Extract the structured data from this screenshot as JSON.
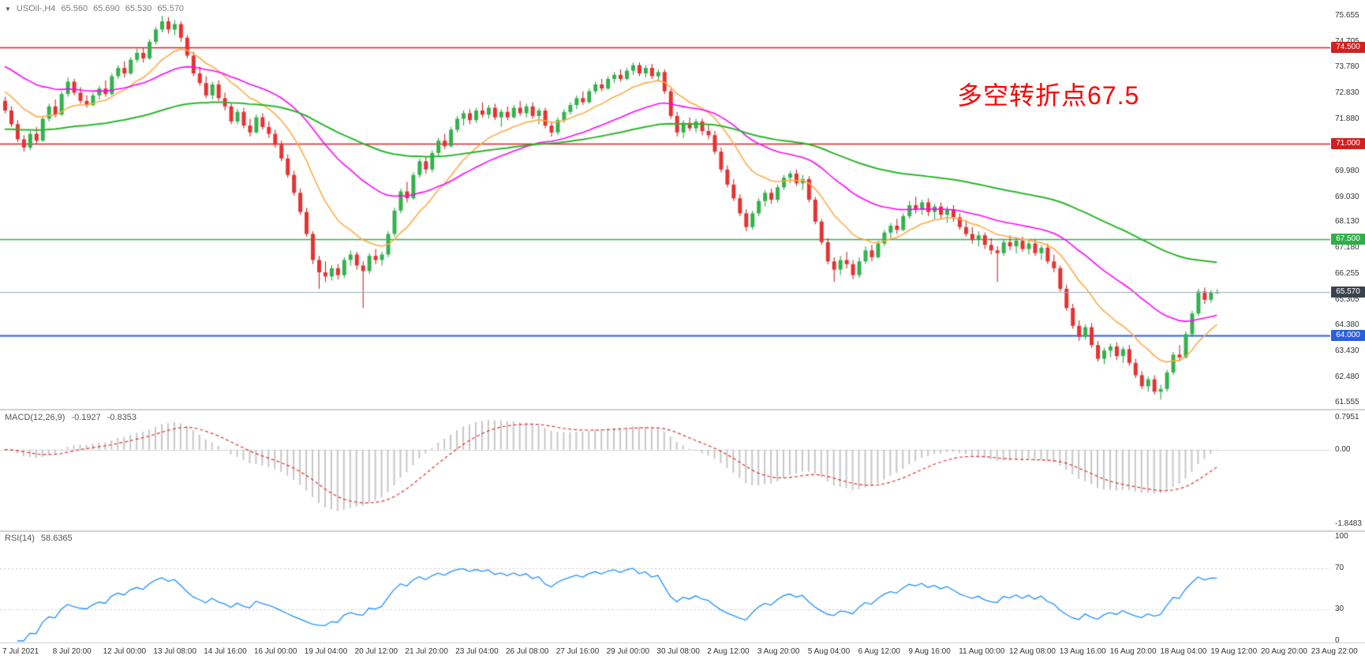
{
  "chart_header": {
    "symbol_period": "USOil-,H4",
    "open": "65.560",
    "high": "65.690",
    "low": "65.530",
    "close": "65.570"
  },
  "annotation": {
    "text": "多空转折点67.5",
    "color": "#ff0000"
  },
  "macd_panel": {
    "title": "MACD(12,26,9)",
    "main_value": "-0.1927",
    "signal_value": "-0.8353",
    "axis_labels": [
      {
        "text": "0.7951",
        "value": 0.7951
      },
      {
        "text": "0.00",
        "value": 0
      },
      {
        "text": "-1.8483",
        "value": -1.8483
      }
    ]
  },
  "rsi_panel": {
    "title": "RSI(14)",
    "value": "58.6365",
    "axis_labels": [
      {
        "text": "100",
        "value": 100
      },
      {
        "text": "70",
        "value": 70
      },
      {
        "text": "30",
        "value": 30
      },
      {
        "text": "0",
        "value": 0
      }
    ]
  },
  "price_axis": {
    "gridline_labels": [
      "75.655",
      "74.705",
      "73.780",
      "72.830",
      "71.880",
      "70.930",
      "69.980",
      "69.030",
      "68.130",
      "67.180",
      "66.255",
      "65.305",
      "64.380",
      "63.430",
      "62.480",
      "61.555"
    ]
  },
  "time_axis": {
    "labels": [
      "7 Jul 2021",
      "8 Jul 20:00",
      "12 Jul 00:00",
      "13 Jul 08:00",
      "14 Jul 16:00",
      "16 Jul 00:00",
      "19 Jul 04:00",
      "20 Jul 12:00",
      "21 Jul 20:00",
      "23 Jul 04:00",
      "26 Jul 08:00",
      "27 Jul 16:00",
      "29 Jul 00:00",
      "30 Jul 08:00",
      "2 Aug 12:00",
      "3 Aug 20:00",
      "5 Aug 04:00",
      "6 Aug 12:00",
      "9 Aug 16:00",
      "11 Aug 00:00",
      "12 Aug 08:00",
      "13 Aug 16:00",
      "16 Aug 20:00",
      "18 Aug 04:00",
      "19 Aug 12:00",
      "20 Aug 20:00",
      "23 Aug 22:00"
    ]
  },
  "chart_data": {
    "type": "candlestick",
    "symbol": "USOil-",
    "timeframe": "H4",
    "current_bar": {
      "open": 65.56,
      "high": 65.69,
      "low": 65.53,
      "close": 65.57
    },
    "price_range": {
      "min": 61.44,
      "max": 75.94
    },
    "horizontal_lines": [
      {
        "value": 74.5,
        "label": "74.500",
        "color": "#d02020",
        "width": 1.5
      },
      {
        "value": 71.0,
        "label": "71.000",
        "color": "#d02020",
        "width": 1.5
      },
      {
        "value": 67.5,
        "label": "67.500",
        "color": "#2fae4a",
        "width": 1.5
      },
      {
        "value": 64.0,
        "label": "64.000",
        "color": "#2b5fd9",
        "width": 2
      }
    ],
    "current_price_line": {
      "value": 65.57,
      "label": "65.570",
      "color": "#9aacb8",
      "box_color": "#3a434c"
    },
    "moving_averages": [
      {
        "name": "fast-ma",
        "period": 13,
        "color": "#ffaa44",
        "seed": 73.0
      },
      {
        "name": "mid-ma",
        "period": 34,
        "color": "#ff00ff",
        "seed": 73.9
      },
      {
        "name": "slow-ma",
        "period": 89,
        "color": "#2ab52a",
        "seed": 71.5
      }
    ],
    "up_color": "#33b24c",
    "up_border": "#119933",
    "down_color": "#e63232",
    "down_border": "#c01212",
    "macd": {
      "fast": 12,
      "slow": 26,
      "signal": 9,
      "histogram_color": "#c6c6c6",
      "signal_color": "#e03030",
      "range": {
        "max": 0.7951,
        "min": -1.8483
      }
    },
    "rsi": {
      "period": 14,
      "color": "#1e90ff",
      "range": [
        0,
        100
      ],
      "levels": [
        70,
        30
      ]
    },
    "candles": [
      [
        72.55,
        72.7,
        72.1,
        72.2
      ],
      [
        72.2,
        72.35,
        71.6,
        71.7
      ],
      [
        71.7,
        71.85,
        71.05,
        71.15
      ],
      [
        71.15,
        71.3,
        70.7,
        70.85
      ],
      [
        70.85,
        71.45,
        70.75,
        71.35
      ],
      [
        71.35,
        71.6,
        71.0,
        71.1
      ],
      [
        71.1,
        72.0,
        71.05,
        71.9
      ],
      [
        71.9,
        72.45,
        71.8,
        72.35
      ],
      [
        72.35,
        72.6,
        71.95,
        72.05
      ],
      [
        72.05,
        72.9,
        72.0,
        72.8
      ],
      [
        72.8,
        73.4,
        72.7,
        73.25
      ],
      [
        73.25,
        73.35,
        72.75,
        72.85
      ],
      [
        72.85,
        73.05,
        72.45,
        72.55
      ],
      [
        72.55,
        72.75,
        72.3,
        72.4
      ],
      [
        72.4,
        72.85,
        72.35,
        72.75
      ],
      [
        72.75,
        73.1,
        72.6,
        73.0
      ],
      [
        73.0,
        73.3,
        72.7,
        72.8
      ],
      [
        72.8,
        73.55,
        72.75,
        73.45
      ],
      [
        73.45,
        73.85,
        73.35,
        73.75
      ],
      [
        73.75,
        74.0,
        73.4,
        73.55
      ],
      [
        73.55,
        74.15,
        73.5,
        74.05
      ],
      [
        74.05,
        74.45,
        73.95,
        74.3
      ],
      [
        74.3,
        74.5,
        73.95,
        74.1
      ],
      [
        74.1,
        74.8,
        74.05,
        74.7
      ],
      [
        74.7,
        75.25,
        74.6,
        75.15
      ],
      [
        75.15,
        75.65,
        75.05,
        75.45
      ],
      [
        75.45,
        75.6,
        75.0,
        75.15
      ],
      [
        75.15,
        75.5,
        74.95,
        75.35
      ],
      [
        75.35,
        75.45,
        74.7,
        74.85
      ],
      [
        74.85,
        74.95,
        74.1,
        74.2
      ],
      [
        74.2,
        74.35,
        73.45,
        73.55
      ],
      [
        73.55,
        73.8,
        73.1,
        73.2
      ],
      [
        73.2,
        73.45,
        72.65,
        72.75
      ],
      [
        72.75,
        73.25,
        72.6,
        73.15
      ],
      [
        73.15,
        73.3,
        72.55,
        72.65
      ],
      [
        72.65,
        72.85,
        72.2,
        72.35
      ],
      [
        72.35,
        72.45,
        71.7,
        71.8
      ],
      [
        71.8,
        72.25,
        71.7,
        72.15
      ],
      [
        72.15,
        72.3,
        71.55,
        71.65
      ],
      [
        71.65,
        71.9,
        71.25,
        71.4
      ],
      [
        71.4,
        72.05,
        71.35,
        71.95
      ],
      [
        71.95,
        72.1,
        71.5,
        71.6
      ],
      [
        71.6,
        71.8,
        71.2,
        71.35
      ],
      [
        71.35,
        71.5,
        70.85,
        70.95
      ],
      [
        70.95,
        71.1,
        70.35,
        70.45
      ],
      [
        70.45,
        70.6,
        69.75,
        69.85
      ],
      [
        69.85,
        70.0,
        69.1,
        69.2
      ],
      [
        69.2,
        69.35,
        68.4,
        68.5
      ],
      [
        68.5,
        68.65,
        67.6,
        67.7
      ],
      [
        67.7,
        67.8,
        66.6,
        66.75
      ],
      [
        66.75,
        66.9,
        65.7,
        66.3
      ],
      [
        66.3,
        66.7,
        65.95,
        66.15
      ],
      [
        66.15,
        66.55,
        66.0,
        66.45
      ],
      [
        66.45,
        66.6,
        66.05,
        66.2
      ],
      [
        66.2,
        66.85,
        66.1,
        66.75
      ],
      [
        66.75,
        67.1,
        66.55,
        66.95
      ],
      [
        66.95,
        67.05,
        66.4,
        66.55
      ],
      [
        66.55,
        66.7,
        65.0,
        66.35
      ],
      [
        66.35,
        67.0,
        66.25,
        66.9
      ],
      [
        66.9,
        67.15,
        66.6,
        66.75
      ],
      [
        66.75,
        67.05,
        66.55,
        66.95
      ],
      [
        66.95,
        67.8,
        66.85,
        67.7
      ],
      [
        67.7,
        68.65,
        67.6,
        68.55
      ],
      [
        68.55,
        69.35,
        68.45,
        69.25
      ],
      [
        69.25,
        69.6,
        68.85,
        69.0
      ],
      [
        69.0,
        69.95,
        68.95,
        69.85
      ],
      [
        69.85,
        70.45,
        69.75,
        70.35
      ],
      [
        70.35,
        70.5,
        69.9,
        70.05
      ],
      [
        70.05,
        70.75,
        69.95,
        70.65
      ],
      [
        70.65,
        71.2,
        70.55,
        71.1
      ],
      [
        71.1,
        71.35,
        70.8,
        70.9
      ],
      [
        70.9,
        71.6,
        70.85,
        71.5
      ],
      [
        71.5,
        72.0,
        71.4,
        71.9
      ],
      [
        71.9,
        72.2,
        71.65,
        72.1
      ],
      [
        72.1,
        72.25,
        71.7,
        71.85
      ],
      [
        71.85,
        72.3,
        71.75,
        72.2
      ],
      [
        72.2,
        72.5,
        71.95,
        72.05
      ],
      [
        72.05,
        72.4,
        71.9,
        72.3
      ],
      [
        72.3,
        72.45,
        71.85,
        71.95
      ],
      [
        71.95,
        72.25,
        71.6,
        72.15
      ],
      [
        72.15,
        72.35,
        71.85,
        71.95
      ],
      [
        71.95,
        72.4,
        71.9,
        72.3
      ],
      [
        72.3,
        72.55,
        72.0,
        72.1
      ],
      [
        72.1,
        72.45,
        71.95,
        72.35
      ],
      [
        72.35,
        72.5,
        71.9,
        72.0
      ],
      [
        72.0,
        72.3,
        71.7,
        72.2
      ],
      [
        72.2,
        72.3,
        71.55,
        71.65
      ],
      [
        71.65,
        71.8,
        71.25,
        71.4
      ],
      [
        71.4,
        71.95,
        71.3,
        71.85
      ],
      [
        71.85,
        72.25,
        71.75,
        72.15
      ],
      [
        72.15,
        72.5,
        72.05,
        72.4
      ],
      [
        72.4,
        72.75,
        72.25,
        72.65
      ],
      [
        72.65,
        72.9,
        72.4,
        72.5
      ],
      [
        72.5,
        73.0,
        72.45,
        72.9
      ],
      [
        72.9,
        73.25,
        72.8,
        73.15
      ],
      [
        73.15,
        73.35,
        72.9,
        73.0
      ],
      [
        73.0,
        73.45,
        72.95,
        73.35
      ],
      [
        73.35,
        73.6,
        73.2,
        73.5
      ],
      [
        73.5,
        73.7,
        73.25,
        73.35
      ],
      [
        73.35,
        73.75,
        73.3,
        73.65
      ],
      [
        73.65,
        73.95,
        73.5,
        73.85
      ],
      [
        73.85,
        73.95,
        73.45,
        73.55
      ],
      [
        73.55,
        73.85,
        73.4,
        73.75
      ],
      [
        73.75,
        73.9,
        73.35,
        73.45
      ],
      [
        73.45,
        73.7,
        73.25,
        73.6
      ],
      [
        73.6,
        73.7,
        72.8,
        72.9
      ],
      [
        72.9,
        73.0,
        71.9,
        72.0
      ],
      [
        72.0,
        72.15,
        71.25,
        71.4
      ],
      [
        71.4,
        71.85,
        71.2,
        71.75
      ],
      [
        71.75,
        71.95,
        71.45,
        71.55
      ],
      [
        71.55,
        71.9,
        71.4,
        71.8
      ],
      [
        71.8,
        71.9,
        71.3,
        71.45
      ],
      [
        71.45,
        71.7,
        71.15,
        71.3
      ],
      [
        71.3,
        71.45,
        70.6,
        70.7
      ],
      [
        70.7,
        70.85,
        69.95,
        70.05
      ],
      [
        70.05,
        70.2,
        69.4,
        69.5
      ],
      [
        69.5,
        69.7,
        68.9,
        69.0
      ],
      [
        69.0,
        69.15,
        68.35,
        68.45
      ],
      [
        68.45,
        68.6,
        67.8,
        67.95
      ],
      [
        67.95,
        68.55,
        67.85,
        68.45
      ],
      [
        68.45,
        69.0,
        68.35,
        68.9
      ],
      [
        68.9,
        69.3,
        68.7,
        69.2
      ],
      [
        69.2,
        69.35,
        68.8,
        68.95
      ],
      [
        68.95,
        69.5,
        68.85,
        69.4
      ],
      [
        69.4,
        69.85,
        69.3,
        69.75
      ],
      [
        69.75,
        70.0,
        69.55,
        69.9
      ],
      [
        69.9,
        70.05,
        69.45,
        69.55
      ],
      [
        69.55,
        69.85,
        69.3,
        69.7
      ],
      [
        69.7,
        69.8,
        68.85,
        68.95
      ],
      [
        68.95,
        69.05,
        68.05,
        68.15
      ],
      [
        68.15,
        68.25,
        67.3,
        67.4
      ],
      [
        67.4,
        67.55,
        66.6,
        66.7
      ],
      [
        66.7,
        66.85,
        65.95,
        66.4
      ],
      [
        66.4,
        66.9,
        66.2,
        66.75
      ],
      [
        66.75,
        67.05,
        66.45,
        66.6
      ],
      [
        66.6,
        66.75,
        66.05,
        66.2
      ],
      [
        66.2,
        66.85,
        66.1,
        66.7
      ],
      [
        66.7,
        67.25,
        66.6,
        67.1
      ],
      [
        67.1,
        67.3,
        66.7,
        66.85
      ],
      [
        66.85,
        67.45,
        66.8,
        67.35
      ],
      [
        67.35,
        67.85,
        67.25,
        67.75
      ],
      [
        67.75,
        68.1,
        67.55,
        68.0
      ],
      [
        68.0,
        68.25,
        67.7,
        67.85
      ],
      [
        67.85,
        68.45,
        67.8,
        68.35
      ],
      [
        68.35,
        68.9,
        68.25,
        68.75
      ],
      [
        68.75,
        69.05,
        68.45,
        68.6
      ],
      [
        68.6,
        68.95,
        68.4,
        68.85
      ],
      [
        68.85,
        69.0,
        68.35,
        68.5
      ],
      [
        68.5,
        68.8,
        68.2,
        68.7
      ],
      [
        68.7,
        68.85,
        68.25,
        68.4
      ],
      [
        68.4,
        68.7,
        68.1,
        68.6
      ],
      [
        68.6,
        68.75,
        68.15,
        68.3
      ],
      [
        68.3,
        68.45,
        67.85,
        67.95
      ],
      [
        67.95,
        68.2,
        67.6,
        67.7
      ],
      [
        67.7,
        67.95,
        67.35,
        67.5
      ],
      [
        67.5,
        67.8,
        67.25,
        67.65
      ],
      [
        67.65,
        67.75,
        67.15,
        67.3
      ],
      [
        67.3,
        67.55,
        66.95,
        67.1
      ],
      [
        67.1,
        67.25,
        65.95,
        67.0
      ],
      [
        67.0,
        67.5,
        66.9,
        67.4
      ],
      [
        67.4,
        67.65,
        67.1,
        67.25
      ],
      [
        67.25,
        67.55,
        67.0,
        67.45
      ],
      [
        67.45,
        67.6,
        67.05,
        67.15
      ],
      [
        67.15,
        67.45,
        66.95,
        67.35
      ],
      [
        67.35,
        67.5,
        66.9,
        67.0
      ],
      [
        67.0,
        67.3,
        66.75,
        67.2
      ],
      [
        67.2,
        67.35,
        66.6,
        66.7
      ],
      [
        66.7,
        66.95,
        66.3,
        66.45
      ],
      [
        66.45,
        66.55,
        65.6,
        65.7
      ],
      [
        65.7,
        65.85,
        64.9,
        65.0
      ],
      [
        65.0,
        65.15,
        64.25,
        64.35
      ],
      [
        64.35,
        64.55,
        63.8,
        63.95
      ],
      [
        63.95,
        64.4,
        63.85,
        64.3
      ],
      [
        64.3,
        64.45,
        63.55,
        63.65
      ],
      [
        63.65,
        63.8,
        63.05,
        63.15
      ],
      [
        63.15,
        63.55,
        62.95,
        63.45
      ],
      [
        63.45,
        63.7,
        63.2,
        63.6
      ],
      [
        63.6,
        63.75,
        63.1,
        63.25
      ],
      [
        63.25,
        63.6,
        63.0,
        63.5
      ],
      [
        63.5,
        63.65,
        62.9,
        63.0
      ],
      [
        63.0,
        63.15,
        62.45,
        62.55
      ],
      [
        62.55,
        62.7,
        62.05,
        62.15
      ],
      [
        62.15,
        62.5,
        61.95,
        62.4
      ],
      [
        62.4,
        62.55,
        61.85,
        61.95
      ],
      [
        61.95,
        62.2,
        61.66,
        62.05
      ],
      [
        62.05,
        62.75,
        61.95,
        62.65
      ],
      [
        62.65,
        63.4,
        62.55,
        63.3
      ],
      [
        63.3,
        63.65,
        63.05,
        63.2
      ],
      [
        63.2,
        64.15,
        63.15,
        64.05
      ],
      [
        64.05,
        64.9,
        63.95,
        64.8
      ],
      [
        64.8,
        65.7,
        64.7,
        65.6
      ],
      [
        65.6,
        65.75,
        65.15,
        65.3
      ],
      [
        65.3,
        65.65,
        65.2,
        65.56
      ],
      [
        65.56,
        65.69,
        65.53,
        65.57
      ]
    ]
  }
}
